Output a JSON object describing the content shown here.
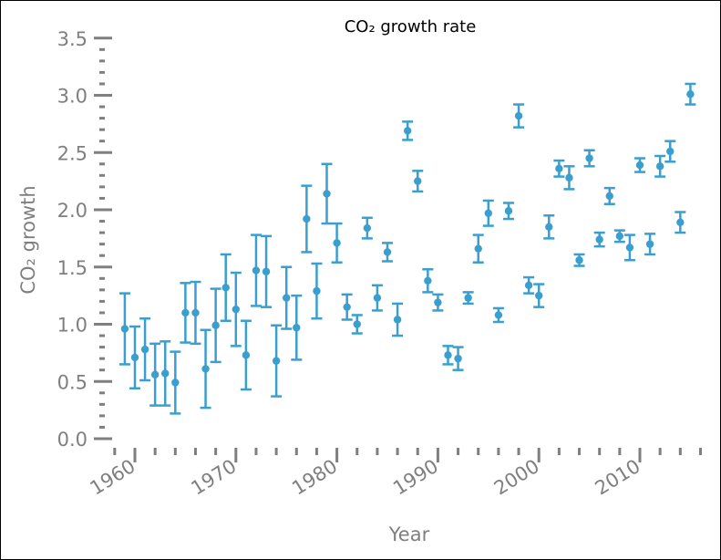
{
  "chart_data": {
    "type": "scatter",
    "title": "CO₂ growth rate",
    "xlabel": "Year",
    "ylabel": "CO₂ growth",
    "xlim": [
      1958,
      2016
    ],
    "ylim": [
      0,
      3.5
    ],
    "x_ticks": [
      1960,
      1970,
      1980,
      1990,
      2000,
      2010
    ],
    "x_tick_labels": [
      "1960",
      "1970",
      "1980",
      "1990",
      "2000",
      "2010"
    ],
    "y_ticks": [
      0,
      0.5,
      1.0,
      1.5,
      2.0,
      2.5,
      3.0,
      3.5
    ],
    "y_tick_labels": [
      "0.0",
      "0.5",
      "1.0",
      "1.5",
      "2.0",
      "2.5",
      "3.0",
      "3.5"
    ],
    "grid": false,
    "color": "#3a9fcf",
    "axis_color": "#7f7f7f",
    "series": [
      {
        "x": [
          1959,
          1960,
          1961,
          1962,
          1963,
          1964,
          1965,
          1966,
          1967,
          1968,
          1969,
          1970,
          1971,
          1972,
          1973,
          1974,
          1975,
          1976,
          1977,
          1978,
          1979,
          1980,
          1981,
          1982,
          1983,
          1984,
          1985,
          1986,
          1987,
          1988,
          1989,
          1990,
          1991,
          1992,
          1993,
          1994,
          1995,
          1996,
          1997,
          1998,
          1999,
          2000,
          2001,
          2002,
          2003,
          2004,
          2005,
          2006,
          2007,
          2008,
          2009,
          2010,
          2011,
          2012,
          2013,
          2014,
          2015
        ],
        "y": [
          0.96,
          0.71,
          0.78,
          0.56,
          0.57,
          0.49,
          1.1,
          1.1,
          0.61,
          0.99,
          1.32,
          1.13,
          0.73,
          1.47,
          1.46,
          0.68,
          1.23,
          0.97,
          1.92,
          1.29,
          2.14,
          1.71,
          1.15,
          1.0,
          1.84,
          1.23,
          1.63,
          1.04,
          2.69,
          2.25,
          1.38,
          1.19,
          0.73,
          0.7,
          1.23,
          1.66,
          1.97,
          1.08,
          1.99,
          2.82,
          1.34,
          1.25,
          1.85,
          2.36,
          2.28,
          1.56,
          2.45,
          1.74,
          2.12,
          1.77,
          1.67,
          2.39,
          1.7,
          2.38,
          2.51,
          1.89,
          3.01
        ],
        "error": [
          0.31,
          0.27,
          0.27,
          0.27,
          0.28,
          0.27,
          0.26,
          0.27,
          0.34,
          0.32,
          0.29,
          0.32,
          0.3,
          0.31,
          0.31,
          0.31,
          0.27,
          0.28,
          0.29,
          0.24,
          0.26,
          0.17,
          0.11,
          0.08,
          0.09,
          0.11,
          0.08,
          0.14,
          0.08,
          0.09,
          0.1,
          0.07,
          0.08,
          0.1,
          0.05,
          0.12,
          0.11,
          0.06,
          0.07,
          0.1,
          0.07,
          0.1,
          0.1,
          0.07,
          0.1,
          0.05,
          0.07,
          0.06,
          0.07,
          0.05,
          0.11,
          0.06,
          0.09,
          0.09,
          0.09,
          0.09,
          0.09
        ]
      }
    ]
  }
}
